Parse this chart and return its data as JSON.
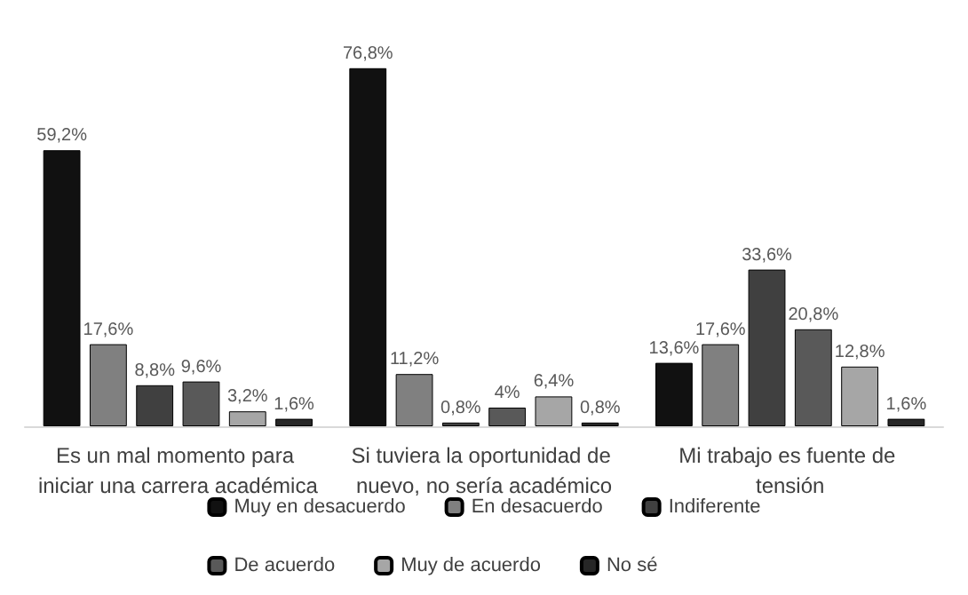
{
  "chart_data": {
    "type": "bar",
    "categories": [
      "Es un mal momento para iniciar una carrera académica",
      "Si tuviera la oportunidad de nuevo, no sería académico",
      "Mi trabajo es fuente de tensión"
    ],
    "series": [
      {
        "name": "Muy en desacuerdo",
        "color": "#111111",
        "values": [
          59.2,
          76.8,
          13.6
        ],
        "value_labels": [
          "59,2%",
          "76,8%",
          "13,6%"
        ]
      },
      {
        "name": "En desacuerdo",
        "color": "#808080",
        "values": [
          17.6,
          11.2,
          17.6
        ],
        "value_labels": [
          "17,6%",
          "11,2%",
          "17,6%"
        ]
      },
      {
        "name": "Indiferente",
        "color": "#404040",
        "values": [
          8.8,
          0.8,
          33.6
        ],
        "value_labels": [
          "8,8%",
          "0,8%",
          "33,6%"
        ]
      },
      {
        "name": "De acuerdo",
        "color": "#595959",
        "values": [
          9.6,
          4,
          20.8
        ],
        "value_labels": [
          "9,6%",
          "4%",
          "20,8%"
        ]
      },
      {
        "name": "Muy de acuerdo",
        "color": "#a6a6a6",
        "values": [
          3.2,
          6.4,
          12.8
        ],
        "value_labels": [
          "3,2%",
          "6,4%",
          "12,8%"
        ]
      },
      {
        "name": "No sé",
        "color": "#262626",
        "values": [
          1.6,
          0.8,
          1.6
        ],
        "value_labels": [
          "1,6%",
          "0,8%",
          "1,6%"
        ]
      }
    ],
    "legend": "bottom"
  }
}
